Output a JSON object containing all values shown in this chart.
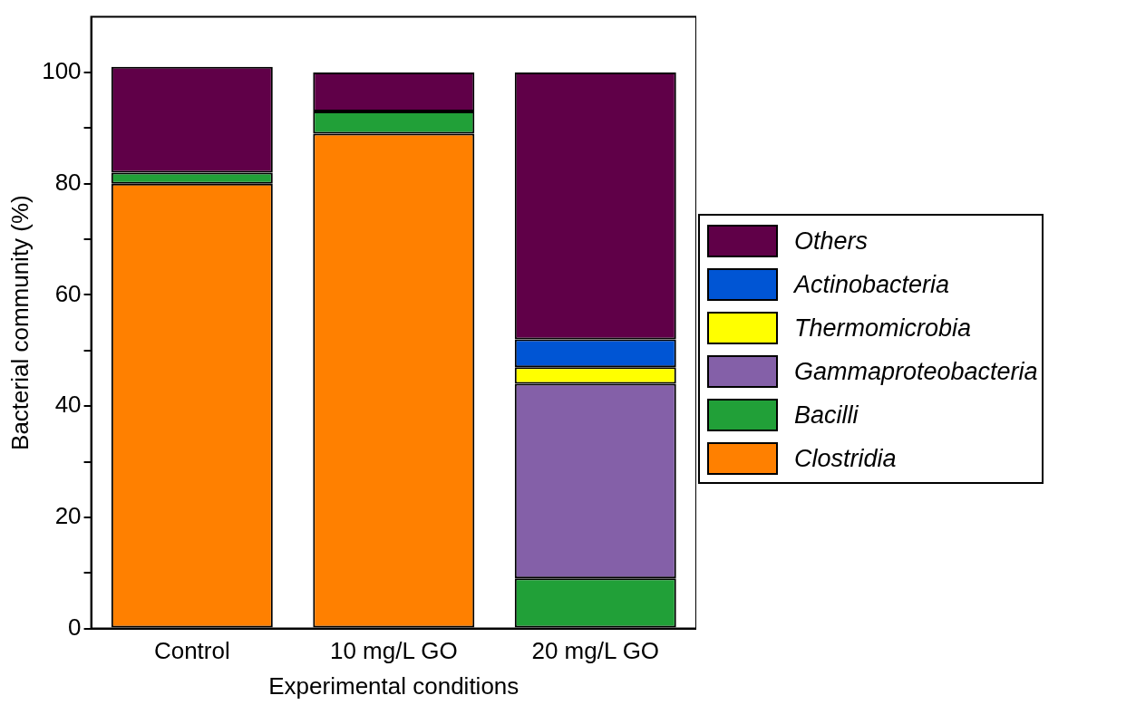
{
  "chart_data": {
    "type": "bar",
    "stacked": true,
    "xlabel": "Experimental conditions",
    "ylabel": "Bacterial community (%)",
    "categories": [
      "Control",
      "10 mg/L GO",
      "20 mg/L GO"
    ],
    "series": [
      {
        "name": "Clostridia",
        "color": "#ff8000",
        "values": [
          80,
          89,
          null
        ]
      },
      {
        "name": "Bacilli",
        "color": "#21a038",
        "values": [
          2,
          4,
          9
        ]
      },
      {
        "name": "Gammaproteobacteria",
        "color": "#8460a8",
        "values": [
          null,
          null,
          35
        ]
      },
      {
        "name": "Thermomicrobia",
        "color": "#ffff00",
        "values": [
          null,
          null,
          3
        ]
      },
      {
        "name": "Actinobacteria",
        "color": "#0055d4",
        "values": [
          null,
          null,
          5
        ]
      },
      {
        "name": "Others",
        "color": "#600048",
        "values": [
          19,
          7,
          48
        ]
      }
    ],
    "ylim": [
      0,
      110
    ],
    "yticks": [
      0,
      {
        "value": 10,
        "label": null
      },
      20,
      {
        "value": 30,
        "label": null
      },
      40,
      {
        "value": 50,
        "label": null
      },
      60,
      {
        "value": 70,
        "label": null
      },
      80,
      {
        "value": 90,
        "label": null
      },
      100
    ],
    "grid": false,
    "legend": "right"
  }
}
